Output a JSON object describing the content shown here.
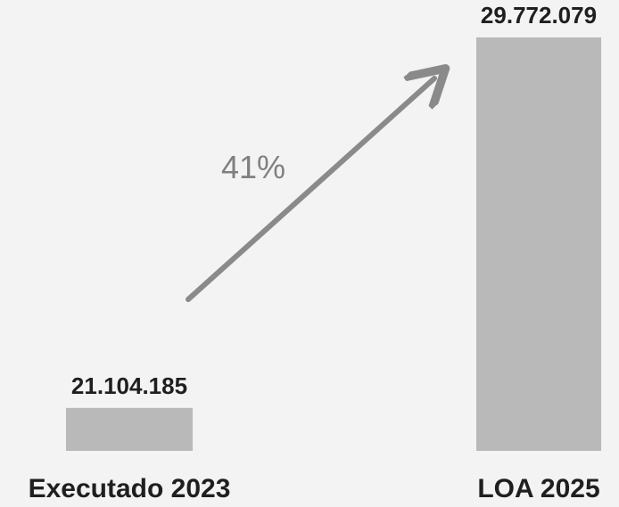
{
  "chart_data": {
    "type": "bar",
    "categories": [
      "Executado 2023",
      "LOA 2025"
    ],
    "values": [
      21104185,
      29772079
    ],
    "value_labels": [
      "21.104.185",
      "29.772.079"
    ],
    "annotation": "41%",
    "colors": {
      "bar": "#b9b9b9",
      "arrow": "#8a8a8a",
      "text": "#1f1f1f",
      "annotation": "#808080"
    }
  }
}
